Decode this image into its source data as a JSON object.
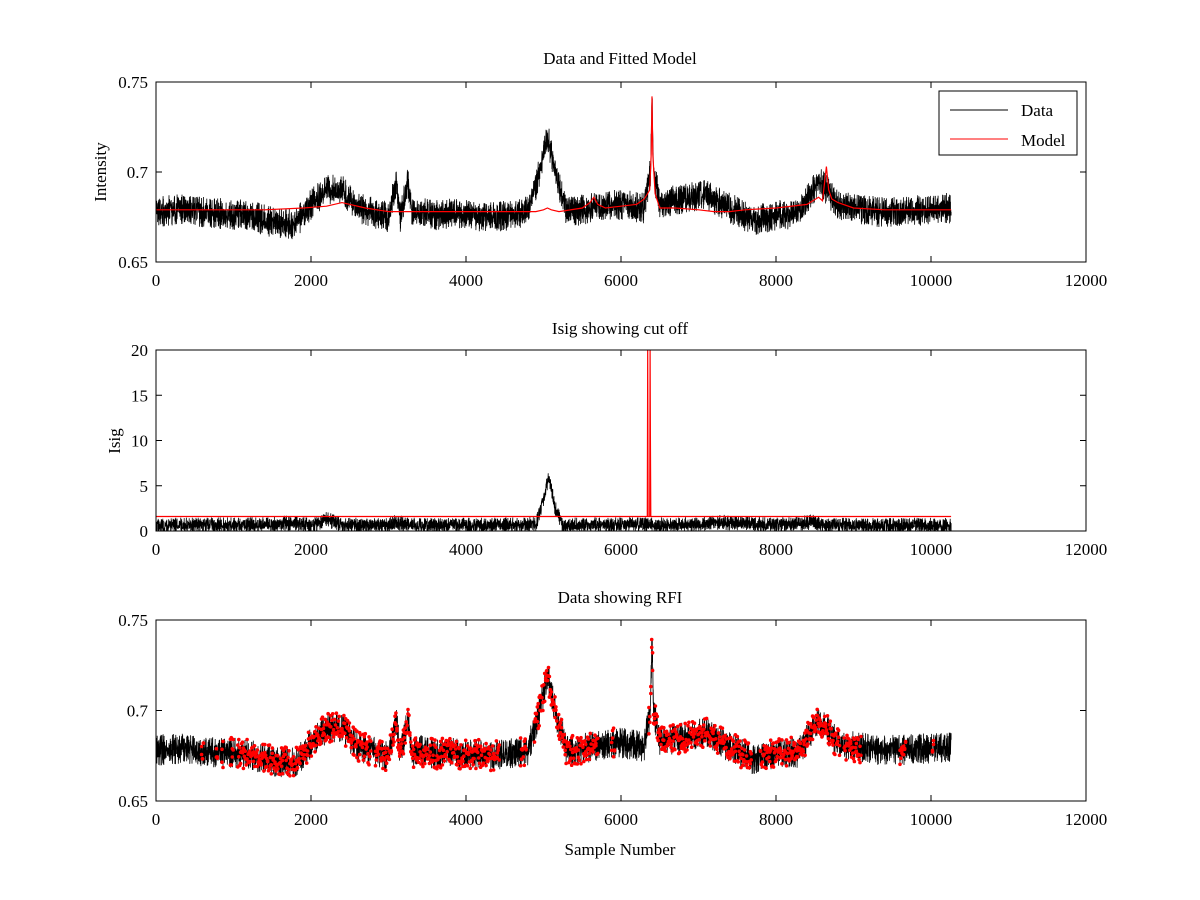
{
  "colors": {
    "data": "#000000",
    "model": "#ff0000",
    "rfi": "#ff0000",
    "background": "#ffffff"
  },
  "chart_data": [
    {
      "type": "line",
      "title": "Data and Fitted Model",
      "xlabel": "",
      "ylabel": "Intensity",
      "xlim": [
        0,
        12000
      ],
      "ylim": [
        0.65,
        0.75
      ],
      "xticks": [
        "0",
        "2000",
        "4000",
        "6000",
        "8000",
        "10000",
        "12000"
      ],
      "yticks": [
        "0.65",
        "0.7",
        "0.75"
      ],
      "legend_position": "top-right",
      "grid": false,
      "series": [
        {
          "name": "Data",
          "color": "#000000",
          "noise": 0.006,
          "x": [
            0,
            300,
            800,
            1200,
            1500,
            1800,
            2000,
            2200,
            2400,
            2600,
            3000,
            3100,
            3150,
            3250,
            3300,
            3400,
            3600,
            3800,
            4000,
            4400,
            4800,
            4950,
            5050,
            5150,
            5300,
            5500,
            5700,
            6000,
            6300,
            6380,
            6400,
            6420,
            6500,
            6800,
            7100,
            7300,
            7500,
            7700,
            8000,
            8300,
            8450,
            8550,
            8650,
            8800,
            9000,
            9300,
            9600,
            10000,
            10260
          ],
          "y": [
            0.678,
            0.679,
            0.677,
            0.676,
            0.672,
            0.671,
            0.682,
            0.69,
            0.69,
            0.68,
            0.675,
            0.695,
            0.675,
            0.695,
            0.676,
            0.678,
            0.676,
            0.677,
            0.676,
            0.675,
            0.678,
            0.7,
            0.72,
            0.7,
            0.678,
            0.679,
            0.681,
            0.682,
            0.68,
            0.7,
            0.742,
            0.7,
            0.683,
            0.685,
            0.688,
            0.682,
            0.678,
            0.673,
            0.676,
            0.677,
            0.688,
            0.695,
            0.69,
            0.682,
            0.68,
            0.678,
            0.678,
            0.679,
            0.68
          ]
        },
        {
          "name": "Model",
          "color": "#ff0000",
          "x": [
            0,
            1400,
            1900,
            2200,
            2400,
            2700,
            3000,
            4900,
            5000,
            5050,
            5100,
            5200,
            5500,
            5600,
            5650,
            5700,
            5800,
            6000,
            6200,
            6300,
            6370,
            6390,
            6400,
            6410,
            6440,
            6500,
            6700,
            7000,
            7200,
            7400,
            7600,
            8000,
            8400,
            8550,
            8600,
            8650,
            8680,
            8720,
            8800,
            9000,
            9400,
            10260
          ],
          "y": [
            0.679,
            0.679,
            0.68,
            0.681,
            0.683,
            0.68,
            0.678,
            0.678,
            0.679,
            0.68,
            0.679,
            0.678,
            0.68,
            0.683,
            0.686,
            0.682,
            0.68,
            0.681,
            0.682,
            0.685,
            0.69,
            0.71,
            0.742,
            0.71,
            0.688,
            0.68,
            0.68,
            0.679,
            0.678,
            0.678,
            0.679,
            0.68,
            0.682,
            0.686,
            0.684,
            0.703,
            0.69,
            0.685,
            0.683,
            0.68,
            0.679,
            0.679
          ]
        }
      ]
    },
    {
      "type": "line",
      "title": "Isig showing cut off",
      "xlabel": "",
      "ylabel": "Isig",
      "xlim": [
        0,
        12000
      ],
      "ylim": [
        0,
        20
      ],
      "xticks": [
        "0",
        "2000",
        "4000",
        "6000",
        "8000",
        "10000",
        "12000"
      ],
      "yticks": [
        "0",
        "5",
        "10",
        "15",
        "20"
      ],
      "grid": false,
      "series": [
        {
          "color": "#000000",
          "noise": 0.6,
          "x": [
            0,
            1500,
            1700,
            2000,
            2200,
            2400,
            3000,
            3100,
            3300,
            4000,
            4900,
            5000,
            5070,
            5150,
            5250,
            6000,
            7000,
            7200,
            8000,
            8500,
            8600,
            9000,
            10260
          ],
          "y": [
            0.6,
            0.7,
            0.9,
            0.6,
            1.3,
            0.6,
            0.6,
            1.0,
            0.6,
            0.6,
            0.7,
            3.5,
            6.0,
            2.5,
            0.6,
            0.7,
            0.7,
            1.0,
            0.6,
            1.0,
            0.6,
            0.6,
            0.6
          ]
        },
        {
          "color": "#ff0000",
          "x": [
            0,
            6340,
            6345,
            6350,
            6370,
            6375,
            6380,
            6385,
            10260
          ],
          "y": [
            1.6,
            1.6,
            20,
            1.6,
            1.6,
            20,
            10.5,
            1.6,
            1.6
          ]
        }
      ]
    },
    {
      "type": "line",
      "title": "Data showing RFI",
      "xlabel": "Sample Number",
      "ylabel": "",
      "xlim": [
        0,
        12000
      ],
      "ylim": [
        0.65,
        0.75
      ],
      "xticks": [
        "0",
        "2000",
        "4000",
        "6000",
        "8000",
        "10000",
        "12000"
      ],
      "yticks": [
        "0.65",
        "0.7",
        "0.75"
      ],
      "grid": false,
      "series": [
        {
          "color": "#000000",
          "noise": 0.006,
          "x": [
            0,
            300,
            800,
            1200,
            1500,
            1800,
            2000,
            2200,
            2400,
            2600,
            3000,
            3100,
            3150,
            3250,
            3300,
            3400,
            3600,
            3800,
            4000,
            4400,
            4800,
            4950,
            5050,
            5150,
            5300,
            5500,
            5700,
            6000,
            6300,
            6380,
            6400,
            6420,
            6500,
            6800,
            7100,
            7300,
            7500,
            7700,
            8000,
            8300,
            8450,
            8550,
            8650,
            8800,
            9000,
            9300,
            9600,
            10000,
            10260
          ],
          "y": [
            0.678,
            0.679,
            0.677,
            0.676,
            0.672,
            0.671,
            0.682,
            0.69,
            0.69,
            0.68,
            0.675,
            0.695,
            0.675,
            0.695,
            0.676,
            0.678,
            0.676,
            0.677,
            0.676,
            0.675,
            0.678,
            0.7,
            0.72,
            0.7,
            0.678,
            0.679,
            0.681,
            0.682,
            0.68,
            0.7,
            0.742,
            0.7,
            0.683,
            0.685,
            0.688,
            0.682,
            0.678,
            0.673,
            0.676,
            0.677,
            0.688,
            0.695,
            0.69,
            0.682,
            0.68,
            0.678,
            0.678,
            0.679,
            0.68
          ]
        }
      ],
      "rfi_flagged_ranges": [
        [
          580,
          620
        ],
        [
          780,
          800
        ],
        [
          850,
          870
        ],
        [
          950,
          1000
        ],
        [
          1050,
          2780
        ],
        [
          2830,
          4430
        ],
        [
          4700,
          4780
        ],
        [
          4880,
          5700
        ],
        [
          5880,
          5920
        ],
        [
          6360,
          7680
        ],
        [
          7800,
          8820
        ],
        [
          8880,
          9100
        ],
        [
          9600,
          9680
        ],
        [
          10020,
          10040
        ]
      ]
    }
  ]
}
